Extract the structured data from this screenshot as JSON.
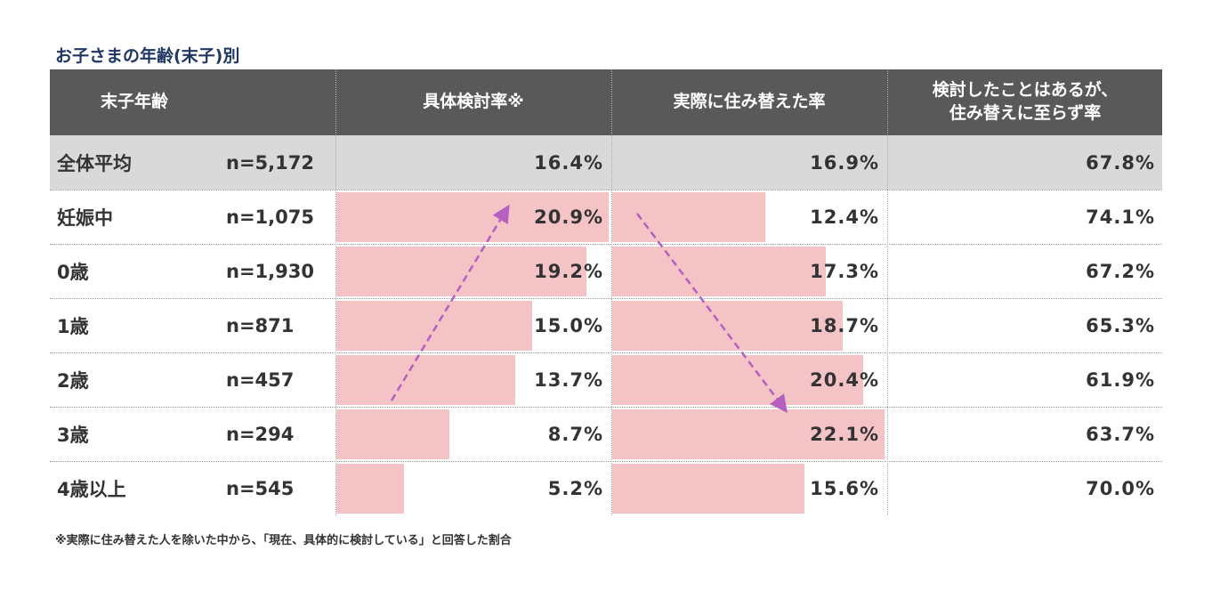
{
  "title": "お子さまの年齢(末子)別",
  "table": {
    "header": [
      "末子年齢",
      "具体検討率※",
      "実際に住み替えた率",
      [
        "検討したことはあるが、",
        "住み替えに至らず率"
      ]
    ],
    "rows": [
      [
        "全体平均",
        "n=5,172",
        "16.4%",
        "16.9%",
        "67.8%"
      ],
      [
        "妊娠中",
        "n=1,075",
        "20.9%",
        "12.4%",
        "74.1%"
      ],
      [
        "0歳",
        "n=1,930",
        "19.2%",
        "17.3%",
        "67.2%"
      ],
      [
        "1歳",
        "n=871",
        "15.0%",
        "18.7%",
        "65.3%"
      ],
      [
        "2歳",
        "n=457",
        "13.7%",
        "20.4%",
        "61.9%"
      ],
      [
        "3歳",
        "n=294",
        "8.7%",
        "22.1%",
        "63.7%"
      ],
      [
        "4歳以上",
        "n=545",
        "5.2%",
        "15.6%",
        "70.0%"
      ]
    ]
  },
  "footnote": "※実際に住み替えた人を除いた中から、「現在、具体的に検討している」と回答した割合"
}
